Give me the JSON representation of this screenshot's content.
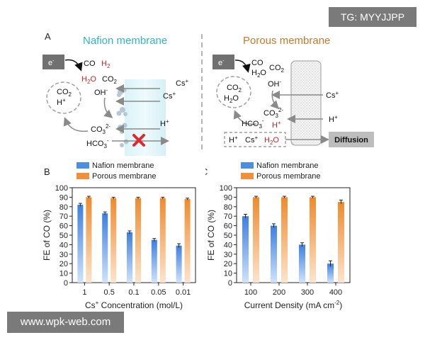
{
  "watermarks": {
    "tag": "TG: MYYJJPP",
    "site": "www.wpk-web.com"
  },
  "panel_a": {
    "letter": "A",
    "left_title": "Nafion membrane",
    "right_title": "Porous membrane",
    "electron": "e",
    "electron_sup": "-",
    "left": {
      "co": "CO",
      "h2": "H",
      "h2_sub": "2",
      "h2o": "H",
      "h2o_sub": "2",
      "h2o_o": "O",
      "co2_top": "CO",
      "co2_top_sub": "2",
      "oh": "OH",
      "oh_sup": "-",
      "co2_loop": "CO",
      "co2_loop_sub": "2",
      "hplus_loop": "H",
      "hplus_sup": "+",
      "co3": "CO",
      "co3_sub": "3",
      "co3_sup": "2-",
      "hco3": "HCO",
      "hco3_sub": "3",
      "hco3_sup": "-",
      "cs1": "Cs",
      "cs1_sup": "+",
      "cs2": "Cs",
      "cs2_sup": "+",
      "hplus_in": "H",
      "hplus_in_sup": "+"
    },
    "right": {
      "co": "CO",
      "h2o_top": "H",
      "h2o_top_sub": "2",
      "h2o_top_o": "O",
      "co2_top": "CO",
      "co2_top_sub": "2",
      "oh": "OH",
      "oh_sup": "-",
      "co2_loop": "CO",
      "co2_loop_sub": "2",
      "h2o_loop": "H",
      "h2o_loop_sub": "2",
      "h2o_loop_o": "O",
      "co3": "CO",
      "co3_sub": "3",
      "co3_sup": "2-",
      "hco3": "HCO",
      "hco3_sub": "3",
      "hco3_sup": "-",
      "hplus_red": "H",
      "hplus_red_sup": "+",
      "cs_in": "Cs",
      "cs_in_sup": "+",
      "hplus_in": "H",
      "hplus_in_sup": "+",
      "box_h": "H",
      "box_h_sup": "+",
      "box_cs": "Cs",
      "box_cs_sup": "+",
      "box_h2o": "H",
      "box_h2o_sub": "2",
      "box_h2o_o": "O",
      "diffusion": "Diffusion"
    }
  },
  "chart_data": [
    {
      "panel": "B",
      "type": "bar",
      "ylabel": "FE of CO (%)",
      "xlabel_pre": "Cs",
      "xlabel_sup": "+",
      "xlabel_post": " Concentration (mol/L)",
      "categories": [
        "1",
        "0.5",
        "0.1",
        "0.05",
        "0.01"
      ],
      "ylim": [
        0,
        100
      ],
      "yticks": [
        "0",
        "10",
        "20",
        "30",
        "40",
        "50",
        "60",
        "70",
        "80",
        "90",
        "100"
      ],
      "series": [
        {
          "name": "Nafion membrane",
          "values": [
            82,
            73,
            53,
            45,
            39
          ],
          "errors": [
            1.5,
            1.5,
            1.5,
            1.5,
            2
          ],
          "color": "#4a8fe0"
        },
        {
          "name": "Porous membrane",
          "values": [
            90,
            89,
            89,
            89,
            88
          ],
          "errors": [
            1,
            1,
            1,
            1,
            1
          ],
          "color": "#f0903a"
        }
      ]
    },
    {
      "panel": "C",
      "type": "bar",
      "ylabel": "FE of CO (%)",
      "xlabel_pre": "Current Density (mA cm",
      "xlabel_sup": "-2",
      "xlabel_post": ")",
      "categories": [
        "100",
        "200",
        "300",
        "400"
      ],
      "ylim": [
        0,
        100
      ],
      "yticks": [
        "0",
        "10",
        "20",
        "30",
        "40",
        "50",
        "60",
        "70",
        "80",
        "90",
        "100"
      ],
      "series": [
        {
          "name": "Nafion membrane",
          "values": [
            70,
            60,
            40,
            20
          ],
          "errors": [
            2,
            2,
            2,
            3
          ],
          "color": "#4a8fe0"
        },
        {
          "name": "Porous membrane",
          "values": [
            90,
            90,
            90,
            85
          ],
          "errors": [
            1,
            1,
            1,
            2
          ],
          "color": "#f0903a"
        }
      ]
    }
  ]
}
